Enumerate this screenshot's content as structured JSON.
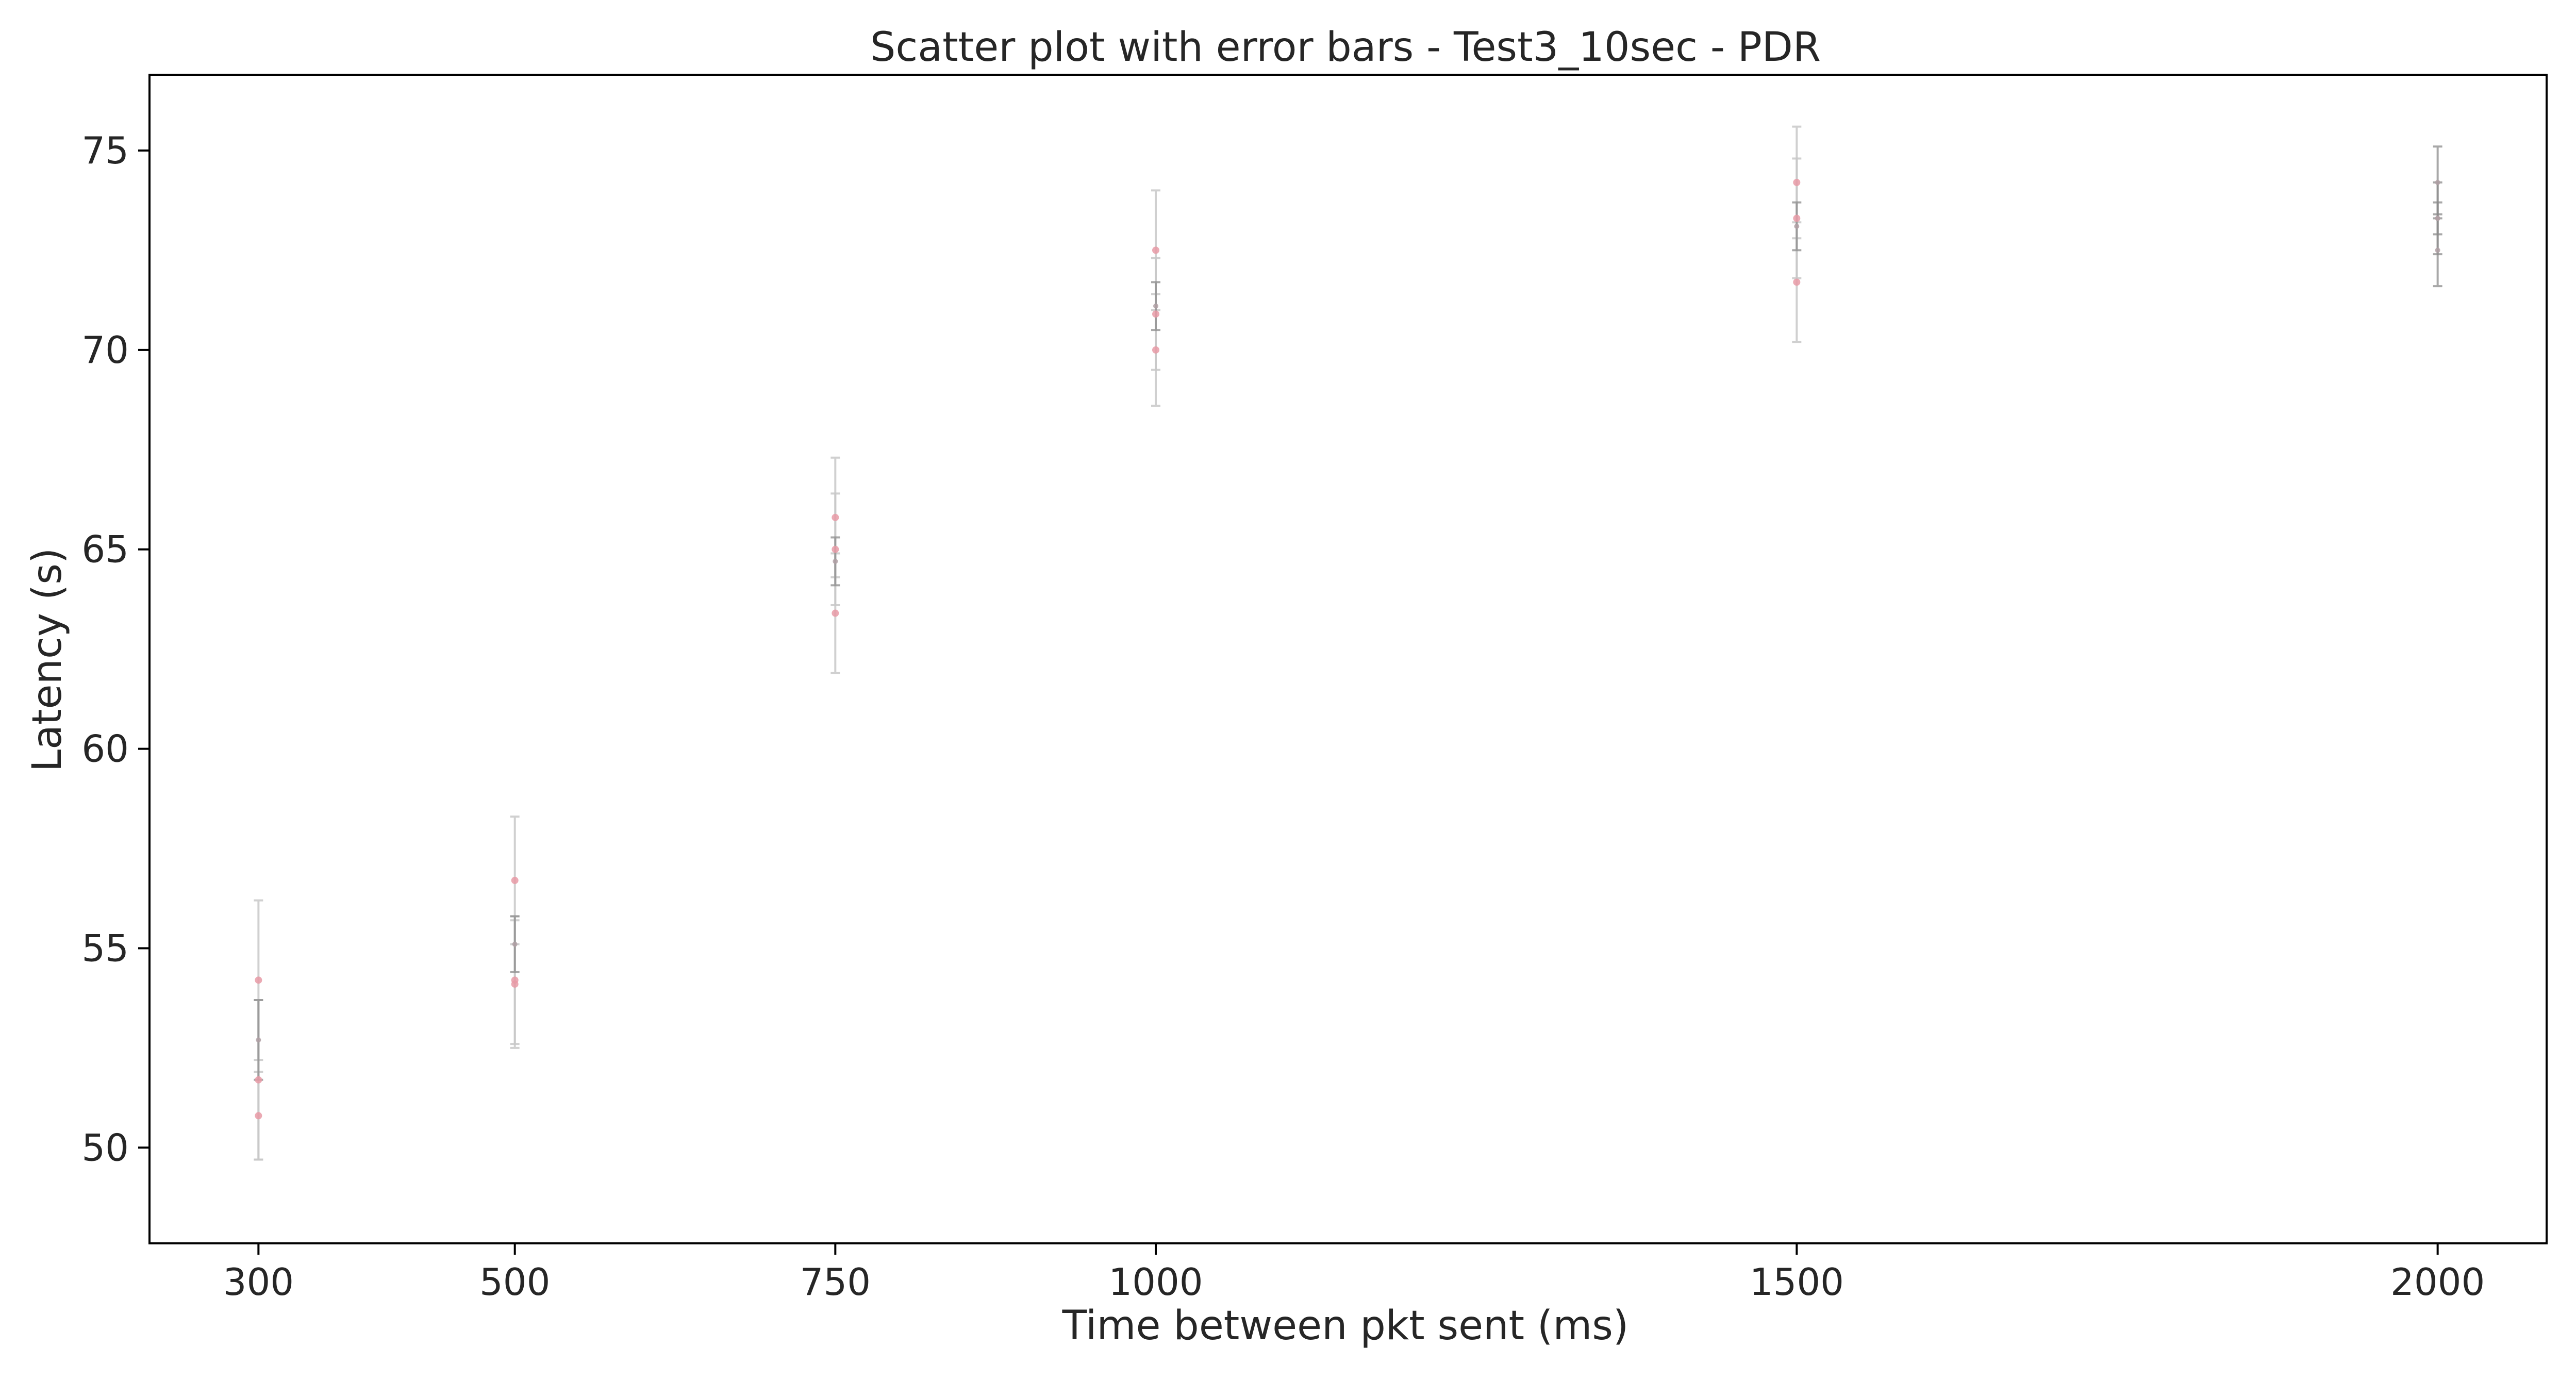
{
  "chart_data": {
    "type": "scatter",
    "title": "Scatter plot with error bars - Test3_10sec - PDR",
    "xlabel": "Time between pkt sent (ms)",
    "ylabel": "Latency (s)",
    "x_ticks": [
      300,
      500,
      750,
      1000,
      1500,
      2000
    ],
    "y_ticks": [
      50,
      55,
      60,
      65,
      70,
      75
    ],
    "xlim": [
      215,
      2085
    ],
    "ylim": [
      47.6,
      76.9
    ],
    "grid": false,
    "legend": "none",
    "colors": {
      "point": "#e89aa6",
      "error_bar": "#c8c8c8",
      "inner_error_bar": "#8c8c8c",
      "axis": "#000000"
    },
    "points": [
      {
        "x": 300,
        "y": 54.2,
        "err": 2.0
      },
      {
        "x": 300,
        "y": 51.7,
        "err": 2.0
      },
      {
        "x": 300,
        "y": 50.8,
        "err": 1.1
      },
      {
        "x": 300,
        "y": 52.7,
        "err": 1.0
      },
      {
        "x": 500,
        "y": 56.7,
        "err": 1.6
      },
      {
        "x": 500,
        "y": 54.2,
        "err": 1.6
      },
      {
        "x": 500,
        "y": 54.1,
        "err": 1.6
      },
      {
        "x": 500,
        "y": 55.1,
        "err": 0.7
      },
      {
        "x": 750,
        "y": 65.8,
        "err": 1.5
      },
      {
        "x": 750,
        "y": 65.0,
        "err": 1.4
      },
      {
        "x": 750,
        "y": 63.4,
        "err": 1.5
      },
      {
        "x": 750,
        "y": 64.7,
        "err": 0.6
      },
      {
        "x": 1000,
        "y": 72.5,
        "err": 1.5
      },
      {
        "x": 1000,
        "y": 70.9,
        "err": 1.4
      },
      {
        "x": 1000,
        "y": 70.0,
        "err": 1.4
      },
      {
        "x": 1000,
        "y": 71.1,
        "err": 0.6
      },
      {
        "x": 1500,
        "y": 74.2,
        "err": 1.4
      },
      {
        "x": 1500,
        "y": 73.3,
        "err": 1.5
      },
      {
        "x": 1500,
        "y": 71.7,
        "err": 1.5
      },
      {
        "x": 1500,
        "y": 73.1,
        "err": 0.6
      },
      {
        "x": 2000,
        "y": 74.2,
        "err": 0.9
      },
      {
        "x": 2000,
        "y": 73.3,
        "err": 0.9
      },
      {
        "x": 2000,
        "y": 72.5,
        "err": 0.9
      },
      {
        "x": 2000,
        "y": 73.3,
        "err": 0.4
      }
    ]
  }
}
